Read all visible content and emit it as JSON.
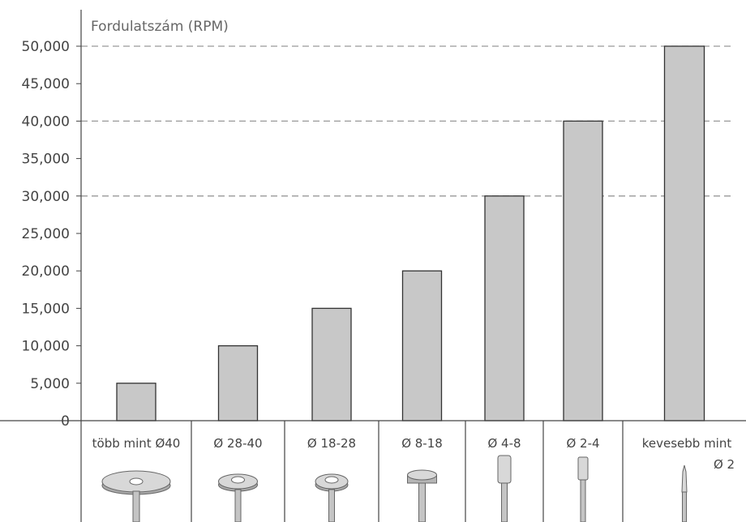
{
  "chart_data": {
    "type": "bar",
    "title": "Fordulatszám (RPM)",
    "categories": [
      "több mint Ø40",
      "Ø 28-40",
      "Ø 18-28",
      "Ø 8-18",
      "Ø 4-8",
      "Ø 2-4",
      "kevesebb mint Ø 2"
    ],
    "values": [
      5000,
      10000,
      15000,
      20000,
      30000,
      40000,
      50000
    ],
    "ylim": [
      0,
      50000
    ],
    "yticks": [
      "0",
      "5,000",
      "10,000",
      "15,000",
      "20,000",
      "25,000",
      "30,000",
      "35,000",
      "40,000",
      "45,000",
      "50,000"
    ],
    "gridlines": [
      30000,
      40000,
      50000
    ],
    "bar_color": "#c8c8c8",
    "bar_edge_color": "#333333",
    "grid_color": "#999999",
    "tool_icons": [
      "large-disc-tool-icon",
      "medium-disc-tool-icon",
      "small-disc-tool-icon",
      "flat-cylinder-tool-icon",
      "cylinder-tool-icon",
      "narrow-cylinder-tool-icon",
      "pointed-tool-icon"
    ]
  }
}
